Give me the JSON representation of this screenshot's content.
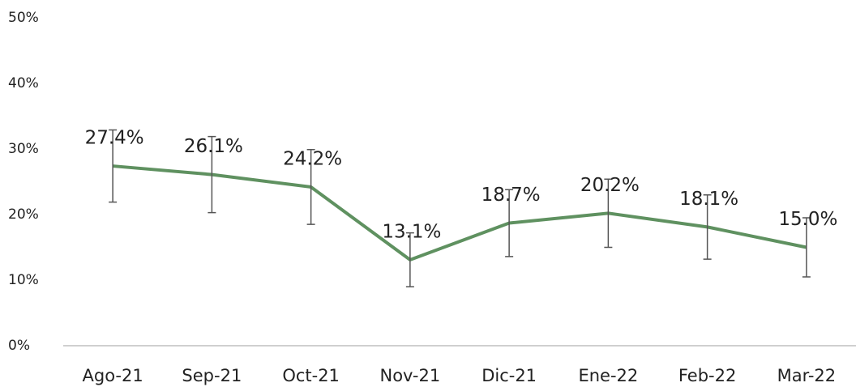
{
  "chart_data": {
    "type": "line",
    "categories": [
      "Ago-21",
      "Sep-21",
      "Oct-21",
      "Nov-21",
      "Dic-21",
      "Ene-22",
      "Feb-22",
      "Mar-22"
    ],
    "series": [
      {
        "color": "#5f9160",
        "values": [
          27.4,
          26.1,
          24.2,
          13.1,
          18.7,
          20.2,
          18.1,
          15.0
        ],
        "value_labels": [
          "27.4%",
          "26.1%",
          "24.2%",
          "13.1%",
          "18.7%",
          "20.2%",
          "18.1%",
          "15.0%"
        ],
        "errors": [
          5.5,
          5.8,
          5.7,
          4.1,
          5.1,
          5.2,
          4.9,
          4.5
        ]
      }
    ],
    "ylim": [
      0,
      50
    ],
    "yticks": [
      {
        "value": 0,
        "label": "0%"
      },
      {
        "value": 10,
        "label": "10%"
      },
      {
        "value": 20,
        "label": "20%"
      },
      {
        "value": 30,
        "label": "30%"
      },
      {
        "value": 40,
        "label": "40%"
      },
      {
        "value": 50,
        "label": "50%"
      }
    ],
    "grid": false
  }
}
